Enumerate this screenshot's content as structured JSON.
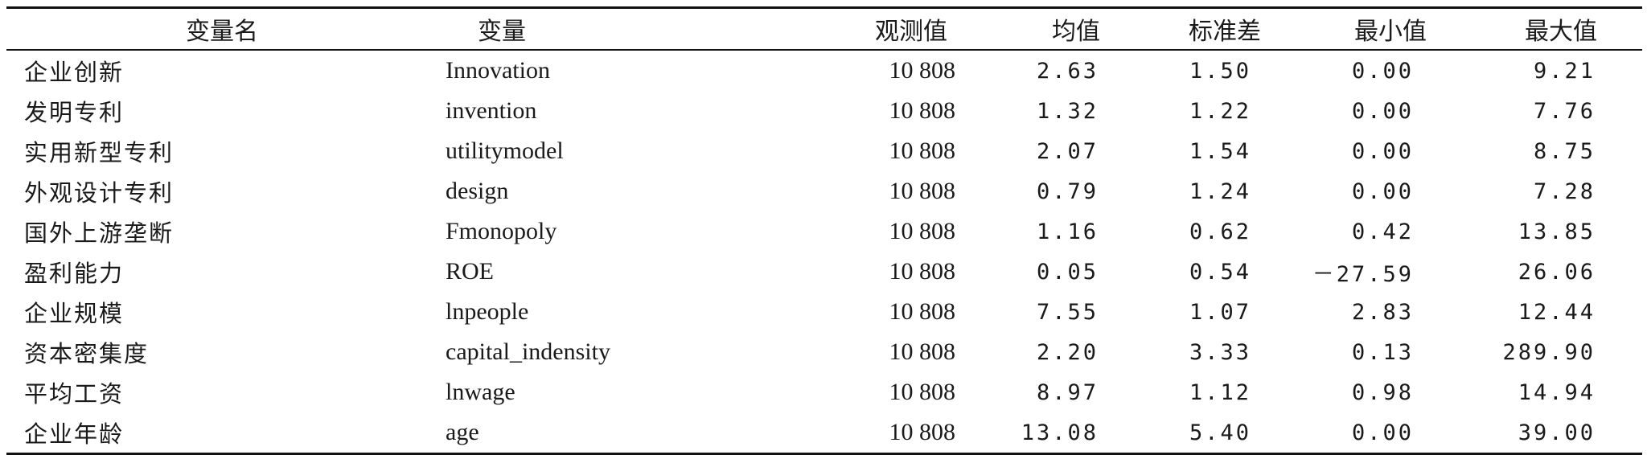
{
  "table": {
    "headers": [
      "变量名",
      "变量",
      "观测值",
      "均值",
      "标准差",
      "最小值",
      "最大值"
    ],
    "rows": [
      {
        "name": "企业创新",
        "var": "Innovation",
        "obs": "10 808",
        "mean": "2.63",
        "std": "1.50",
        "min": "0.00",
        "max": "9.21"
      },
      {
        "name": "发明专利",
        "var": "invention",
        "obs": "10 808",
        "mean": "1.32",
        "std": "1.22",
        "min": "0.00",
        "max": "7.76"
      },
      {
        "name": "实用新型专利",
        "var": "utilitymodel",
        "obs": "10 808",
        "mean": "2.07",
        "std": "1.54",
        "min": "0.00",
        "max": "8.75"
      },
      {
        "name": "外观设计专利",
        "var": "design",
        "obs": "10 808",
        "mean": "0.79",
        "std": "1.24",
        "min": "0.00",
        "max": "7.28"
      },
      {
        "name": "国外上游垄断",
        "var": "Fmonopoly",
        "obs": "10 808",
        "mean": "1.16",
        "std": "0.62",
        "min": "0.42",
        "max": "13.85"
      },
      {
        "name": "盈利能力",
        "var": "ROE",
        "obs": "10 808",
        "mean": "0.05",
        "std": "0.54",
        "min": "－27.59",
        "max": "26.06"
      },
      {
        "name": "企业规模",
        "var": "lnpeople",
        "obs": "10 808",
        "mean": "7.55",
        "std": "1.07",
        "min": "2.83",
        "max": "12.44"
      },
      {
        "name": "资本密集度",
        "var": "capital_indensity",
        "obs": "10 808",
        "mean": "2.20",
        "std": "3.33",
        "min": "0.13",
        "max": "289.90"
      },
      {
        "name": "平均工资",
        "var": "lnwage",
        "obs": "10 808",
        "mean": "8.97",
        "std": "1.12",
        "min": "0.98",
        "max": "14.94"
      },
      {
        "name": "企业年龄",
        "var": "age",
        "obs": "10 808",
        "mean": "13.08",
        "std": "5.40",
        "min": "0.00",
        "max": "39.00"
      }
    ]
  }
}
